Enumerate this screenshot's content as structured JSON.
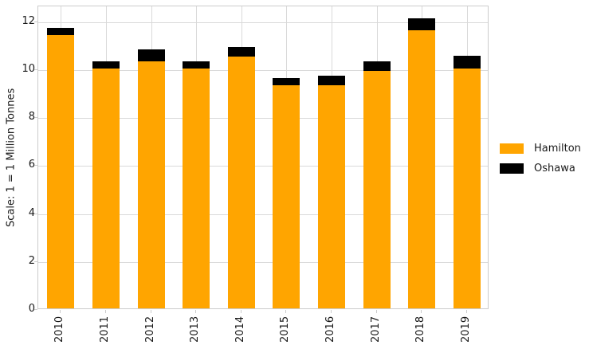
{
  "chart_data": {
    "type": "bar",
    "stacked": true,
    "categories": [
      "2010",
      "2011",
      "2012",
      "2013",
      "2014",
      "2015",
      "2016",
      "2017",
      "2018",
      "2019"
    ],
    "series": [
      {
        "name": "Hamilton",
        "color": "#FFA500",
        "values": [
          11.4,
          10.0,
          10.3,
          10.0,
          10.5,
          9.3,
          9.3,
          9.9,
          11.6,
          10.0
        ]
      },
      {
        "name": "Oshawa",
        "color": "#000000",
        "values": [
          0.3,
          0.3,
          0.5,
          0.3,
          0.4,
          0.3,
          0.4,
          0.4,
          0.5,
          0.55
        ]
      }
    ],
    "xlabel": "",
    "ylabel": "Scale: 1 = 1 Million Tonnes",
    "yticks": [
      0,
      2,
      4,
      6,
      8,
      10,
      12
    ],
    "ylim": [
      0,
      12.66
    ],
    "grid": true,
    "xtick_rotation": 90,
    "legend_position": "right",
    "colors": {
      "grid": "#d9d9d9",
      "spine": "#cccccc",
      "text": "#1a1a1a",
      "background": "#ffffff"
    }
  }
}
